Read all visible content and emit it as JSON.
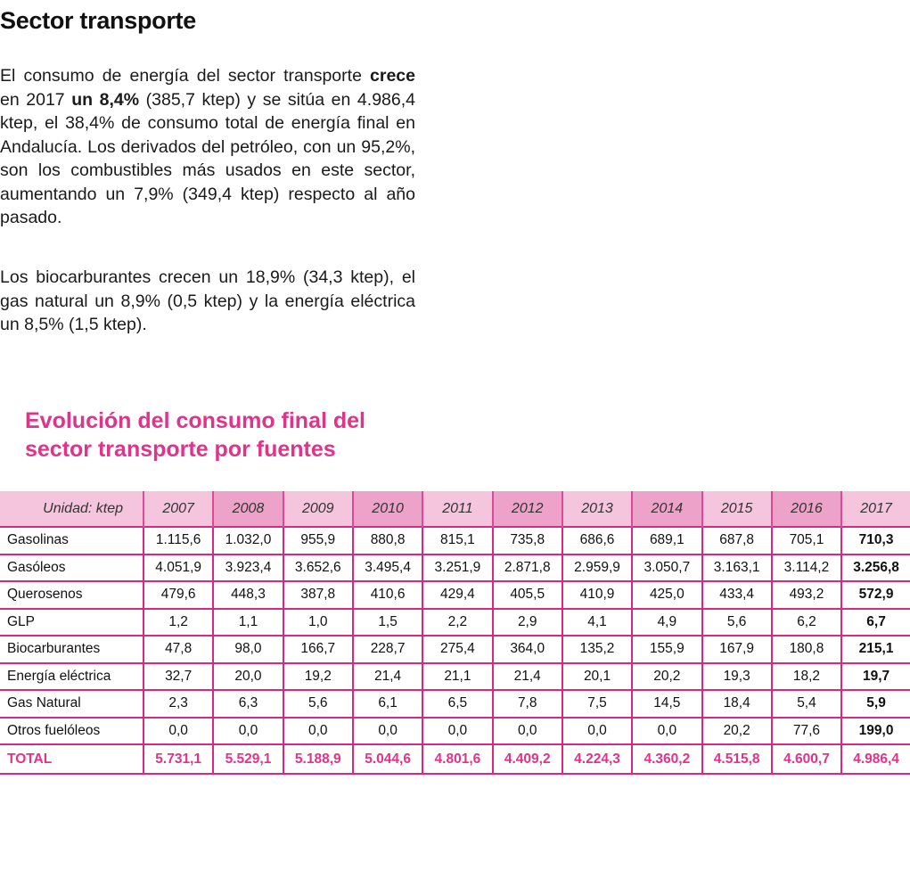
{
  "title": "Sector transporte",
  "paragraph1": {
    "t1": "El consumo de energía del sector transporte ",
    "b1": "crece",
    "t2": " en 2017 ",
    "b2": "un 8,4%",
    "t3": " (385,7 ktep) y se sitúa en 4.986,4 ktep, el 38,4% de consumo total de energía final en Andalucía. Los derivados del petróleo, con un 95,2%, son los combustibles más usados en este sector, aumentando un 7,9% (349,4 ktep) respecto al año pasado."
  },
  "paragraph2": "Los biocarburantes crecen un 18,9% (34,3 ktep), el gas natural un 8,9% (0,5 ktep) y la energía eléctrica un 8,5% (1,5 ktep).",
  "table_title": "Evolución del consumo final del sector transporte por fuentes",
  "table": {
    "unit_label": "Unidad: ktep",
    "years": [
      "2007",
      "2008",
      "2009",
      "2010",
      "2011",
      "2012",
      "2013",
      "2014",
      "2015",
      "2016",
      "2017"
    ],
    "rows": [
      {
        "label": "Gasolinas",
        "values": [
          "1.115,6",
          "1.032,0",
          "955,9",
          "880,8",
          "815,1",
          "735,8",
          "686,6",
          "689,1",
          "687,8",
          "705,1",
          "710,3"
        ]
      },
      {
        "label": "Gasóleos",
        "values": [
          "4.051,9",
          "3.923,4",
          "3.652,6",
          "3.495,4",
          "3.251,9",
          "2.871,8",
          "2.959,9",
          "3.050,7",
          "3.163,1",
          "3.114,2",
          "3.256,8"
        ]
      },
      {
        "label": "Querosenos",
        "values": [
          "479,6",
          "448,3",
          "387,8",
          "410,6",
          "429,4",
          "405,5",
          "410,9",
          "425,0",
          "433,4",
          "493,2",
          "572,9"
        ]
      },
      {
        "label": "GLP",
        "values": [
          "1,2",
          "1,1",
          "1,0",
          "1,5",
          "2,2",
          "2,9",
          "4,1",
          "4,9",
          "5,6",
          "6,2",
          "6,7"
        ]
      },
      {
        "label": "Biocarburantes",
        "values": [
          "47,8",
          "98,0",
          "166,7",
          "228,7",
          "275,4",
          "364,0",
          "135,2",
          "155,9",
          "167,9",
          "180,8",
          "215,1"
        ]
      },
      {
        "label": "Energía eléctrica",
        "values": [
          "32,7",
          "20,0",
          "19,2",
          "21,4",
          "21,1",
          "21,4",
          "20,1",
          "20,2",
          "19,3",
          "18,2",
          "19,7"
        ]
      },
      {
        "label": "Gas Natural",
        "values": [
          "2,3",
          "6,3",
          "5,6",
          "6,1",
          "6,5",
          "7,8",
          "7,5",
          "14,5",
          "18,4",
          "5,4",
          "5,9"
        ]
      },
      {
        "label": "Otros fuelóleos",
        "values": [
          "0,0",
          "0,0",
          "0,0",
          "0,0",
          "0,0",
          "0,0",
          "0,0",
          "0,0",
          "20,2",
          "77,6",
          "199,0"
        ]
      }
    ],
    "total": {
      "label": "TOTAL",
      "values": [
        "5.731,1",
        "5.529,1",
        "5.188,9",
        "5.044,6",
        "4.801,6",
        "4.409,2",
        "4.224,3",
        "4.360,2",
        "4.515,8",
        "4.600,7",
        "4.986,4"
      ]
    }
  },
  "colors": {
    "accent": "#e0338a",
    "header_light": "#f5c4dd",
    "header_dark": "#eda3c9",
    "grid": "#d42a86"
  }
}
